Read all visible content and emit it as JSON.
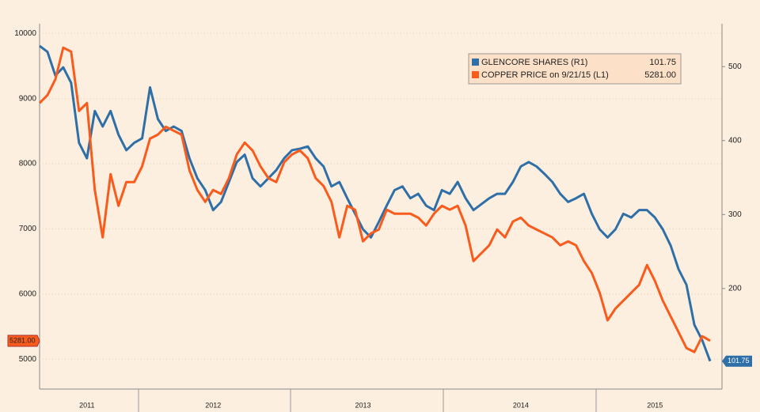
{
  "chart_data": {
    "type": "line",
    "categories": [
      null,
      null,
      null,
      null,
      null,
      null,
      "2011",
      null,
      null,
      null,
      null,
      null,
      null,
      null,
      null,
      null,
      null,
      null,
      null,
      null,
      null,
      null,
      "2012",
      null,
      null,
      null,
      null,
      null,
      null,
      null,
      null,
      null,
      null,
      null,
      null,
      null,
      null,
      null,
      null,
      null,
      null,
      "2013",
      null,
      null,
      null,
      null,
      null,
      null,
      null,
      null,
      null,
      null,
      null,
      null,
      null,
      null,
      null,
      null,
      null,
      null,
      null,
      "2014",
      null,
      null,
      null,
      null,
      null,
      null,
      null,
      null,
      null,
      null,
      null,
      null,
      null,
      null,
      null,
      null,
      "2015",
      null,
      null,
      null,
      null,
      null,
      null,
      null
    ],
    "series": [
      {
        "name": "GLENCORE SHARES (R1)",
        "color": "#2f6fa8",
        "axis": "y2",
        "values": [
          528,
          520,
          488,
          499,
          478,
          397,
          376,
          440,
          419,
          440,
          408,
          387,
          397,
          403,
          472,
          429,
          413,
          419,
          413,
          376,
          349,
          333,
          306,
          317,
          344,
          371,
          381,
          349,
          338,
          349,
          360,
          376,
          387,
          389,
          392,
          376,
          365,
          338,
          344,
          322,
          301,
          280,
          269,
          290,
          312,
          333,
          338,
          322,
          328,
          312,
          306,
          333,
          328,
          344,
          322,
          306,
          314,
          322,
          328,
          328,
          344,
          365,
          371,
          365,
          355,
          344,
          328,
          317,
          322,
          328,
          301,
          280,
          269,
          280,
          301,
          296,
          306,
          306,
          296,
          280,
          258,
          226,
          205,
          151,
          130,
          101.75
        ],
        "value_labels": [
          null,
          null,
          null,
          null,
          null,
          null,
          null,
          null,
          null,
          null,
          null,
          null,
          null,
          null,
          null,
          null,
          null,
          null,
          null,
          null,
          null,
          null,
          null,
          null,
          null,
          null,
          null,
          null,
          null,
          null,
          null,
          null,
          null,
          null,
          null,
          null,
          null,
          null,
          null,
          null,
          null,
          null,
          null,
          null,
          null,
          null,
          null,
          null,
          null,
          null,
          null,
          null,
          null,
          null,
          null,
          null,
          null,
          null,
          null,
          null,
          null,
          null,
          null,
          null,
          null,
          null,
          null,
          null,
          null,
          null,
          null,
          null,
          null,
          null,
          null,
          null,
          null,
          null,
          null,
          null,
          null,
          null,
          null,
          null,
          null,
          "101.75"
        ]
      },
      {
        "name": "COPPER PRICE on 9/21/15 (L1)",
        "color": "#f95b1c",
        "axis": "y",
        "values": [
          8932,
          9053,
          9296,
          9782,
          9721,
          8811,
          8932,
          7597,
          6869,
          7840,
          7354,
          7718,
          7718,
          7961,
          8386,
          8447,
          8568,
          8507,
          8447,
          7900,
          7597,
          7415,
          7597,
          7536,
          7779,
          8143,
          8325,
          8204,
          7961,
          7779,
          7718,
          8022,
          8143,
          8204,
          8083,
          7779,
          7658,
          7415,
          6869,
          7354,
          7294,
          6808,
          6930,
          6990,
          7294,
          7233,
          7233,
          7233,
          7172,
          7051,
          7233,
          7354,
          7294,
          7354,
          7051,
          6505,
          6626,
          6748,
          6990,
          6869,
          7112,
          7172,
          7051,
          6990,
          6930,
          6869,
          6748,
          6808,
          6748,
          6505,
          6323,
          6019,
          5595,
          5777,
          5898,
          6019,
          6141,
          6444,
          6201,
          5898,
          5655,
          5413,
          5170,
          5109,
          5352,
          5281
        ],
        "value_labels": [
          null,
          null,
          null,
          null,
          null,
          null,
          null,
          null,
          null,
          null,
          null,
          null,
          null,
          null,
          null,
          null,
          null,
          null,
          null,
          null,
          null,
          null,
          null,
          null,
          null,
          null,
          null,
          null,
          null,
          null,
          null,
          null,
          null,
          null,
          null,
          null,
          null,
          null,
          null,
          null,
          null,
          null,
          null,
          null,
          null,
          null,
          null,
          null,
          null,
          null,
          null,
          null,
          null,
          null,
          null,
          null,
          null,
          null,
          null,
          null,
          null,
          null,
          null,
          null,
          null,
          null,
          null,
          null,
          null,
          null,
          null,
          null,
          null,
          null,
          null,
          null,
          null,
          null,
          null,
          null,
          null,
          null,
          null,
          null,
          null,
          "5281.00"
        ]
      }
    ],
    "ylim": [
      4540,
      10150
    ],
    "yticks": [
      5000,
      6000,
      7000,
      8000,
      9000,
      10000
    ],
    "y2lim": [
      64,
      558
    ],
    "y2ticks": [
      200,
      300,
      400,
      500
    ],
    "grid": true,
    "legend": "upper right"
  }
}
